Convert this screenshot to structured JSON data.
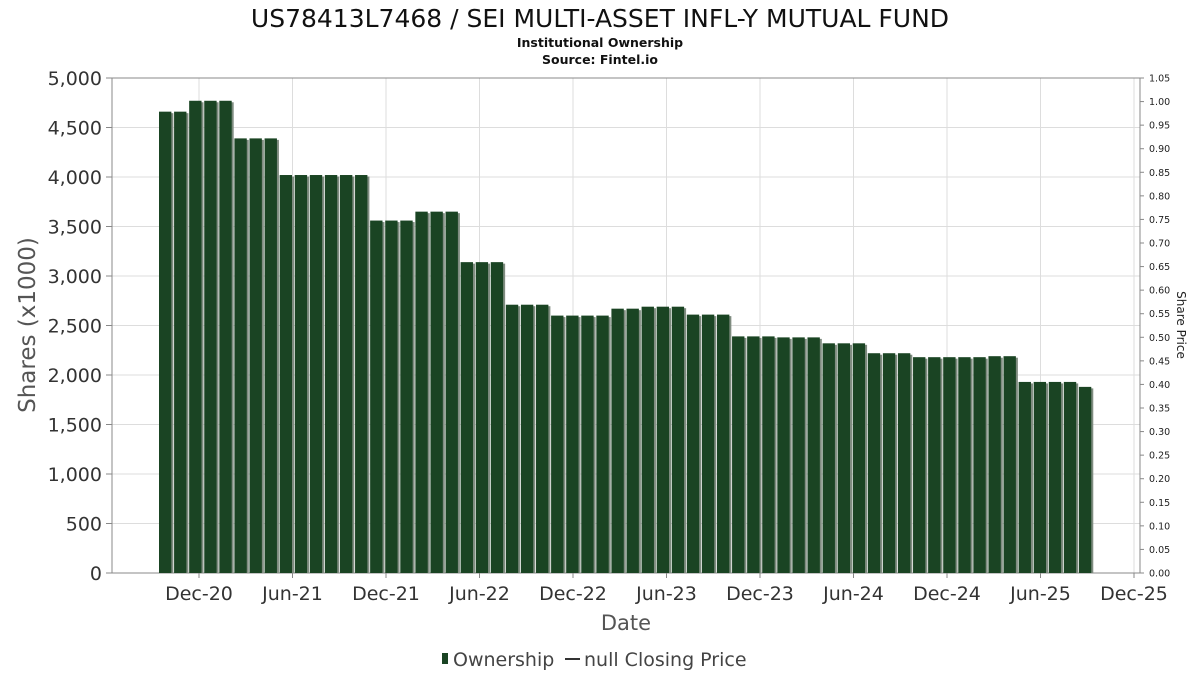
{
  "chart_data": {
    "type": "bar",
    "title": "US78413L7468 / SEI MULTI-ASSET INFL-Y MUTUAL FUND",
    "subtitle": "Institutional Ownership",
    "source": "Source: Fintel.io",
    "xlabel": "Date",
    "ylabel": "Shares (x1000)",
    "ylabel_right": "Share Price",
    "ylim": [
      0,
      5000
    ],
    "ylim_right": [
      0,
      1.05
    ],
    "grid": true,
    "legend_position": "bottom",
    "y_ticks": [
      "0",
      "500",
      "1,000",
      "1,500",
      "2,000",
      "2,500",
      "3,000",
      "3,500",
      "4,000",
      "4,500",
      "5,000"
    ],
    "y_right_ticks": [
      "0.00",
      "0.05",
      "0.10",
      "0.15",
      "0.20",
      "0.25",
      "0.30",
      "0.35",
      "0.40",
      "0.45",
      "0.50",
      "0.55",
      "0.60",
      "0.65",
      "0.70",
      "0.75",
      "0.80",
      "0.85",
      "0.90",
      "0.95",
      "1.00",
      "1.05"
    ],
    "x_ticks": [
      "Dec-20",
      "Jun-21",
      "Dec-21",
      "Jun-22",
      "Dec-22",
      "Jun-23",
      "Dec-23",
      "Jun-24",
      "Dec-24",
      "Jun-25",
      "Dec-25"
    ],
    "colors": {
      "bar": "#1a4423",
      "bar_shadow": "#7f8c80",
      "grid": "#dddddd",
      "axis": "#888888"
    },
    "series": [
      {
        "name": "Ownership",
        "values": [
          4660,
          4660,
          4770,
          4770,
          4770,
          4390,
          4390,
          4390,
          4020,
          4020,
          4020,
          4020,
          4020,
          4020,
          3560,
          3560,
          3560,
          3650,
          3650,
          3650,
          3140,
          3140,
          3140,
          2710,
          2710,
          2710,
          2600,
          2600,
          2600,
          2600,
          2670,
          2670,
          2690,
          2690,
          2690,
          2610,
          2610,
          2610,
          2390,
          2390,
          2390,
          2380,
          2380,
          2380,
          2320,
          2320,
          2320,
          2220,
          2220,
          2220,
          2180,
          2180,
          2180,
          2180,
          2180,
          2190,
          2190,
          1930,
          1930,
          1930,
          1930,
          1880
        ]
      }
    ],
    "legend": [
      {
        "label": "Ownership",
        "marker": "bar"
      },
      {
        "label": "null Closing Price",
        "marker": "line"
      }
    ]
  }
}
